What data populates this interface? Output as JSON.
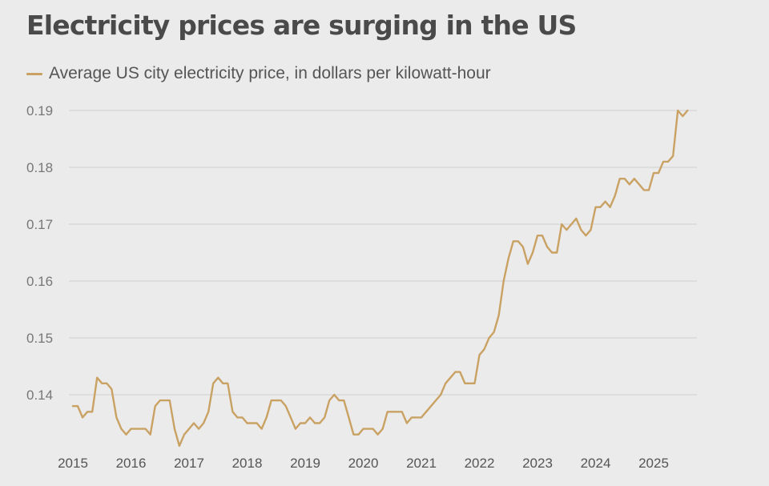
{
  "title": "Electricity prices are surging in the US",
  "colors": {
    "series": "#c9a263",
    "grid": "#cfcfcf",
    "background": "#ebebeb"
  },
  "chart_data": {
    "type": "line",
    "title": "Electricity prices are surging in the US",
    "xlabel": "",
    "ylabel": "",
    "yticks": [
      "0.14",
      "0.15",
      "0.16",
      "0.17",
      "0.18",
      "0.19"
    ],
    "xticks": [
      "2015",
      "2016",
      "2017",
      "2018",
      "2019",
      "2020",
      "2021",
      "2022",
      "2023",
      "2024",
      "2025"
    ],
    "ylim": [
      0.13,
      0.19
    ],
    "xlim": [
      "2015-01",
      "2025-08"
    ],
    "grid": "horizontal",
    "legend_position": "top-left",
    "series": [
      {
        "name": "Average US city electricity price, in dollars per kilowatt-hour",
        "x": [
          "2015-01",
          "2015-02",
          "2015-03",
          "2015-04",
          "2015-05",
          "2015-06",
          "2015-07",
          "2015-08",
          "2015-09",
          "2015-10",
          "2015-11",
          "2015-12",
          "2016-01",
          "2016-02",
          "2016-03",
          "2016-04",
          "2016-05",
          "2016-06",
          "2016-07",
          "2016-08",
          "2016-09",
          "2016-10",
          "2016-11",
          "2016-12",
          "2017-01",
          "2017-02",
          "2017-03",
          "2017-04",
          "2017-05",
          "2017-06",
          "2017-07",
          "2017-08",
          "2017-09",
          "2017-10",
          "2017-11",
          "2017-12",
          "2018-01",
          "2018-02",
          "2018-03",
          "2018-04",
          "2018-05",
          "2018-06",
          "2018-07",
          "2018-08",
          "2018-09",
          "2018-10",
          "2018-11",
          "2018-12",
          "2019-01",
          "2019-02",
          "2019-03",
          "2019-04",
          "2019-05",
          "2019-06",
          "2019-07",
          "2019-08",
          "2019-09",
          "2019-10",
          "2019-11",
          "2019-12",
          "2020-01",
          "2020-02",
          "2020-03",
          "2020-04",
          "2020-05",
          "2020-06",
          "2020-07",
          "2020-08",
          "2020-09",
          "2020-10",
          "2020-11",
          "2020-12",
          "2021-01",
          "2021-02",
          "2021-03",
          "2021-04",
          "2021-05",
          "2021-06",
          "2021-07",
          "2021-08",
          "2021-09",
          "2021-10",
          "2021-11",
          "2021-12",
          "2022-01",
          "2022-02",
          "2022-03",
          "2022-04",
          "2022-05",
          "2022-06",
          "2022-07",
          "2022-08",
          "2022-09",
          "2022-10",
          "2022-11",
          "2022-12",
          "2023-01",
          "2023-02",
          "2023-03",
          "2023-04",
          "2023-05",
          "2023-06",
          "2023-07",
          "2023-08",
          "2023-09",
          "2023-10",
          "2023-11",
          "2023-12",
          "2024-01",
          "2024-02",
          "2024-03",
          "2024-04",
          "2024-05",
          "2024-06",
          "2024-07",
          "2024-08",
          "2024-09",
          "2024-10",
          "2024-11",
          "2024-12",
          "2025-01",
          "2025-02",
          "2025-03",
          "2025-04",
          "2025-05",
          "2025-06",
          "2025-07",
          "2025-08"
        ],
        "values": [
          0.138,
          0.138,
          0.136,
          0.137,
          0.137,
          0.143,
          0.142,
          0.142,
          0.141,
          0.136,
          0.134,
          0.133,
          0.134,
          0.134,
          0.134,
          0.134,
          0.133,
          0.138,
          0.139,
          0.139,
          0.139,
          0.134,
          0.131,
          0.133,
          0.134,
          0.135,
          0.134,
          0.135,
          0.137,
          0.142,
          0.143,
          0.142,
          0.142,
          0.137,
          0.136,
          0.136,
          0.135,
          0.135,
          0.135,
          0.134,
          0.136,
          0.139,
          0.139,
          0.139,
          0.138,
          0.136,
          0.134,
          0.135,
          0.135,
          0.136,
          0.135,
          0.135,
          0.136,
          0.139,
          0.14,
          0.139,
          0.139,
          0.136,
          0.133,
          0.133,
          0.134,
          0.134,
          0.134,
          0.133,
          0.134,
          0.137,
          0.137,
          0.137,
          0.137,
          0.135,
          0.136,
          0.136,
          0.136,
          0.137,
          0.138,
          0.139,
          0.14,
          0.142,
          0.143,
          0.144,
          0.144,
          0.142,
          0.142,
          0.142,
          0.147,
          0.148,
          0.15,
          0.151,
          0.154,
          0.16,
          0.164,
          0.167,
          0.167,
          0.166,
          0.163,
          0.165,
          0.168,
          0.168,
          0.166,
          0.165,
          0.165,
          0.17,
          0.169,
          0.17,
          0.171,
          0.169,
          0.168,
          0.169,
          0.173,
          0.173,
          0.174,
          0.173,
          0.175,
          0.178,
          0.178,
          0.177,
          0.178,
          0.177,
          0.176,
          0.176,
          0.179,
          0.179,
          0.181,
          0.181,
          0.182,
          0.19,
          0.189,
          0.19
        ]
      }
    ]
  }
}
